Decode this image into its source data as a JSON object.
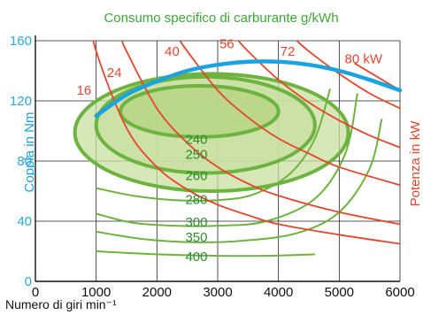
{
  "chart_data": {
    "type": "line",
    "title": "Consumo specifico di carburante g/kWh",
    "xlabel": "Numero di giri min⁻¹",
    "ylabel_left": "Coppia in Nm",
    "ylabel_right": "Potenza in kW",
    "xlim": [
      0,
      6000
    ],
    "ylim": [
      0,
      160
    ],
    "x_ticks": [
      "0",
      "1000",
      "2000",
      "3000",
      "4000",
      "5000",
      "6000"
    ],
    "y_ticks": [
      "0",
      "40",
      "80",
      "120",
      "160"
    ],
    "grid": true,
    "colors": {
      "title": "#3aa935",
      "torque": "#1aa3e0",
      "consumption": "#6db33f",
      "consumption_fill": "#c8dfa0",
      "consumption_fill_inner": "#b5d37f",
      "power": "#e8442c",
      "axis": "#111111",
      "grid": "#222222",
      "ytick": "#29a8df"
    },
    "torque_curve": {
      "x": [
        1000,
        1500,
        2000,
        2500,
        3000,
        3500,
        4000,
        4500,
        5000,
        5500,
        6000
      ],
      "y": [
        110,
        124,
        133,
        140,
        144,
        146,
        146,
        144,
        140,
        134,
        127
      ]
    },
    "consumption_labels": [
      "240",
      "250",
      "260",
      "280",
      "300",
      "350",
      "400"
    ],
    "consumption_series": [
      {
        "label": "240",
        "type": "closed",
        "cx": 2700,
        "cy": 113,
        "rx": 1300,
        "ry": 17
      },
      {
        "label": "250",
        "type": "closed",
        "cx": 2800,
        "cy": 104,
        "rx": 1800,
        "ry": 32
      },
      {
        "label": "260",
        "type": "closed",
        "cx": 2900,
        "cy": 99,
        "rx": 2250,
        "ry": 39
      },
      {
        "label": "280",
        "type": "open",
        "x": [
          1000,
          1600,
          2300,
          3000,
          3600,
          4200,
          4600,
          4850
        ],
        "y": [
          62,
          57,
          54,
          54,
          58,
          72,
          95,
          128
        ]
      },
      {
        "label": "300",
        "type": "open",
        "x": [
          1000,
          1600,
          2300,
          3000,
          3800,
          4600,
          5100,
          5300
        ],
        "y": [
          45,
          39,
          37,
          37,
          40,
          55,
          85,
          125
        ]
      },
      {
        "label": "350",
        "type": "open",
        "x": [
          1000,
          1800,
          2600,
          3400,
          4300,
          5000,
          5500,
          5700
        ],
        "y": [
          33,
          28,
          26,
          27,
          32,
          46,
          75,
          108
        ]
      },
      {
        "label": "400",
        "type": "open",
        "x": [
          1000,
          2000,
          3000,
          3800,
          4600
        ],
        "y": [
          20,
          18,
          17,
          17,
          18
        ]
      }
    ],
    "power_series": [
      {
        "name": "16",
        "x": [
          800,
          1000,
          1500,
          2000,
          2500,
          3000,
          3500,
          4000,
          5000,
          6000
        ],
        "y": [
          191,
          153,
          102,
          76,
          61,
          51,
          44,
          38,
          31,
          25
        ]
      },
      {
        "name": "24",
        "x": [
          1430,
          1500,
          2000,
          2500,
          3000,
          3500,
          4000,
          5000,
          6000
        ],
        "y": [
          160,
          153,
          115,
          92,
          76,
          65,
          57,
          46,
          38
        ]
      },
      {
        "name": "40",
        "x": [
          2380,
          2500,
          3000,
          3500,
          4000,
          4500,
          5000,
          6000
        ],
        "y": [
          160,
          153,
          127,
          109,
          95,
          85,
          76,
          64
        ]
      },
      {
        "name": "56",
        "x": [
          3340,
          3500,
          4000,
          4500,
          5000,
          5500,
          6000
        ],
        "y": [
          160,
          153,
          134,
          119,
          107,
          97,
          89
        ]
      },
      {
        "name": "72",
        "x": [
          4300,
          4500,
          5000,
          5500,
          6000
        ],
        "y": [
          160,
          153,
          138,
          125,
          115
        ]
      },
      {
        "name": "80 kW",
        "x": [
          5250,
          5500,
          6000
        ],
        "y": [
          145,
          139,
          127
        ]
      }
    ]
  }
}
